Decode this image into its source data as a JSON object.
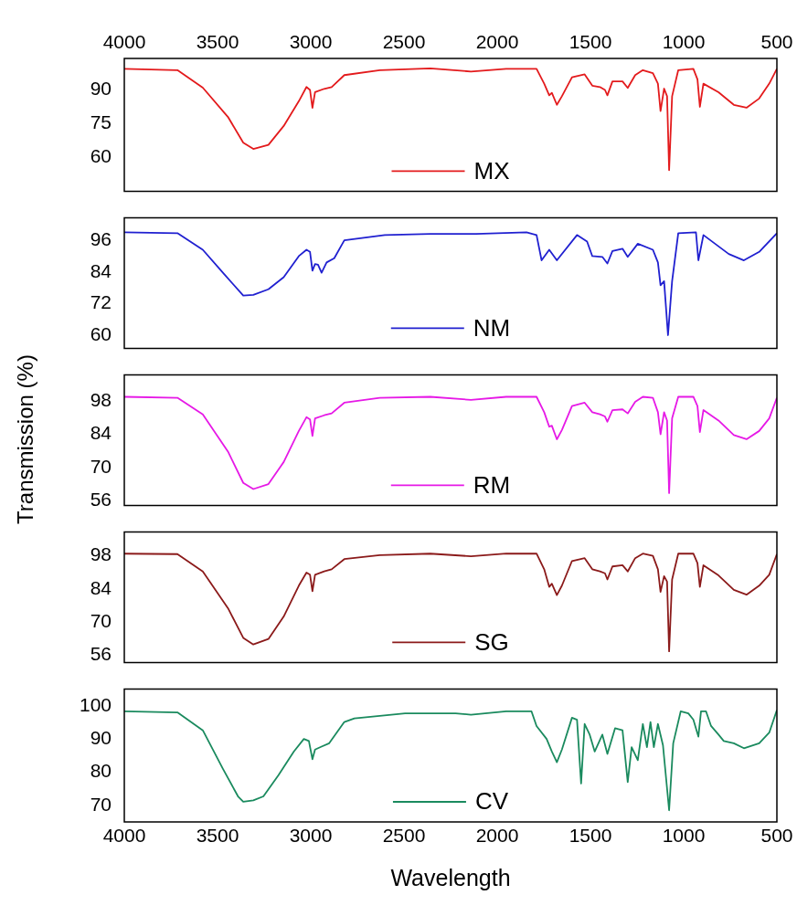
{
  "chart_data": [
    {
      "type": "line",
      "xlim": [
        4000,
        500
      ],
      "xticks": [
        4000,
        3500,
        3000,
        2500,
        2000,
        1500,
        1000,
        500
      ],
      "ylim": [
        45,
        104
      ],
      "yticks": [
        60,
        75,
        90
      ],
      "legend": "bottom",
      "series": [
        {
          "name": "MX",
          "color": "#e31a1c",
          "x": [
            4000,
            3715,
            3579,
            3444,
            3362,
            3308,
            3227,
            3145,
            3064,
            3023,
            3004,
            2991,
            2977,
            2928,
            2888,
            2820,
            2630,
            2359,
            2141,
            1952,
            1789,
            1748,
            1721,
            1707,
            1680,
            1653,
            1599,
            1531,
            1490,
            1449,
            1422,
            1409,
            1382,
            1328,
            1300,
            1260,
            1219,
            1165,
            1138,
            1124,
            1105,
            1089,
            1078,
            1062,
            1029,
            948,
            926,
            913,
            894,
            813,
            731,
            663,
            595,
            541,
            500
          ],
          "values": [
            99.4,
            98.8,
            91,
            78,
            66.6,
            63.8,
            65.6,
            74,
            85,
            91.3,
            90,
            82,
            89,
            90.5,
            91.3,
            96.6,
            98.8,
            99.6,
            98.2,
            99.4,
            99.4,
            92.8,
            87.6,
            88.7,
            83.4,
            87.2,
            95.6,
            96.9,
            91.9,
            91.3,
            90,
            87.6,
            93.8,
            93.8,
            90.9,
            96.6,
            98.8,
            97.5,
            92.8,
            80.6,
            90.6,
            87.2,
            54.4,
            87.2,
            98.8,
            99.4,
            94.7,
            82.5,
            92.8,
            89,
            83.4,
            82.1,
            86.2,
            92.8,
            99.4
          ]
        }
      ]
    },
    {
      "type": "line",
      "xlim": [
        4000,
        500
      ],
      "xticks": [
        4000,
        3500,
        3000,
        2500,
        2000,
        1500,
        1000,
        500
      ],
      "ylim": [
        55,
        104.5
      ],
      "yticks": [
        60,
        72,
        84,
        96
      ],
      "legend": "bottom",
      "tick_labels": "y",
      "series": [
        {
          "name": "NM",
          "color": "#2020d0",
          "x": [
            4000,
            3715,
            3579,
            3471,
            3362,
            3308,
            3227,
            3145,
            3064,
            3023,
            3004,
            2991,
            2977,
            2961,
            2942,
            2915,
            2874,
            2820,
            2603,
            2359,
            2114,
            1843,
            1789,
            1762,
            1721,
            1680,
            1572,
            1518,
            1490,
            1436,
            1409,
            1382,
            1328,
            1300,
            1246,
            1165,
            1138,
            1124,
            1105,
            1084,
            1062,
            1029,
            934,
            921,
            894,
            758,
            677,
            595,
            500
          ],
          "values": [
            99,
            98.7,
            92.4,
            83.7,
            75,
            75.3,
            77.4,
            82,
            90,
            92.4,
            91.6,
            84.5,
            87,
            86.7,
            83.7,
            87.6,
            89.2,
            96,
            98,
            98.4,
            98.4,
            99,
            98,
            88.4,
            92.4,
            88.4,
            98,
            95.5,
            90,
            89.7,
            87.2,
            91.9,
            92.8,
            89.7,
            94.7,
            92.4,
            87.6,
            78.9,
            80.5,
            60,
            80.5,
            98.7,
            99,
            88.4,
            98,
            90.8,
            88.4,
            91.6,
            98.7
          ]
        }
      ]
    },
    {
      "type": "line",
      "xlim": [
        4000,
        500
      ],
      "xticks": [
        4000,
        3500,
        3000,
        2500,
        2000,
        1500,
        1000,
        500
      ],
      "ylim": [
        54,
        109
      ],
      "yticks": [
        56,
        70,
        84,
        98
      ],
      "legend": "bottom",
      "tick_labels": "y",
      "ylabel": "Transmission (%)",
      "series": [
        {
          "name": "RM",
          "color": "#e619e6",
          "x": [
            4000,
            3715,
            3579,
            3444,
            3362,
            3308,
            3227,
            3145,
            3064,
            3023,
            3004,
            2991,
            2977,
            2928,
            2888,
            2820,
            2630,
            2359,
            2141,
            1952,
            1789,
            1748,
            1721,
            1707,
            1680,
            1653,
            1599,
            1531,
            1490,
            1449,
            1422,
            1409,
            1382,
            1328,
            1300,
            1260,
            1219,
            1165,
            1138,
            1124,
            1105,
            1089,
            1078,
            1062,
            1029,
            948,
            926,
            913,
            894,
            813,
            731,
            663,
            595,
            541,
            500
          ],
          "values": [
            99.8,
            99.4,
            92.4,
            76.7,
            63.5,
            60.9,
            63,
            72.3,
            85.4,
            91.2,
            90.3,
            83.3,
            90.7,
            92,
            92.8,
            97.3,
            99.4,
            99.8,
            98.5,
            99.8,
            99.8,
            93.3,
            87.2,
            87.6,
            81.9,
            85.8,
            95.9,
            97.3,
            93.3,
            92.4,
            91.5,
            89.3,
            94.2,
            94.5,
            92.8,
            97.7,
            99.8,
            99.4,
            93.3,
            84,
            93.3,
            89.8,
            59.2,
            90.7,
            99.8,
            99.8,
            95.9,
            84.9,
            94.2,
            89.8,
            83.7,
            81.9,
            85.4,
            90.7,
            99.4
          ]
        }
      ]
    },
    {
      "type": "line",
      "xlim": [
        4000,
        500
      ],
      "xticks": [
        4000,
        3500,
        3000,
        2500,
        2000,
        1500,
        1000,
        500
      ],
      "ylim": [
        53,
        108
      ],
      "yticks": [
        56,
        70,
        84,
        98
      ],
      "legend": "bottom",
      "tick_labels": "y",
      "series": [
        {
          "name": "SG",
          "color": "#8b1a1a",
          "x": [
            4000,
            3715,
            3579,
            3444,
            3362,
            3308,
            3227,
            3145,
            3064,
            3023,
            3004,
            2991,
            2977,
            2928,
            2888,
            2820,
            2630,
            2359,
            2141,
            1952,
            1789,
            1748,
            1721,
            1707,
            1680,
            1653,
            1599,
            1531,
            1490,
            1449,
            1422,
            1409,
            1382,
            1328,
            1300,
            1260,
            1219,
            1165,
            1138,
            1124,
            1105,
            1089,
            1078,
            1062,
            1029,
            948,
            926,
            913,
            894,
            813,
            731,
            663,
            595,
            541,
            500
          ],
          "values": [
            98.9,
            98.7,
            91.4,
            75.9,
            63.4,
            60.6,
            62.9,
            72.4,
            85.4,
            90.9,
            90,
            83.1,
            90,
            91.4,
            92.3,
            96.6,
            98.3,
            98.9,
            97.8,
            98.9,
            98.9,
            92.3,
            84.9,
            86.2,
            81.4,
            85.4,
            95.8,
            97,
            92.3,
            91.4,
            90.6,
            88,
            93.5,
            94,
            91.4,
            97,
            98.9,
            98,
            92.3,
            82.8,
            89.4,
            87.1,
            57.7,
            88,
            98.9,
            98.9,
            94.9,
            84.9,
            94,
            89.7,
            83.6,
            81.6,
            85.4,
            90,
            98.7
          ]
        }
      ]
    },
    {
      "type": "line",
      "xlim": [
        4000,
        500
      ],
      "xticks": [
        4000,
        3500,
        3000,
        2500,
        2000,
        1500,
        1000,
        500
      ],
      "ylim": [
        65,
        105
      ],
      "yticks": [
        70,
        80,
        90,
        100
      ],
      "legend": "bottom",
      "xlabel": "Wavelength",
      "series": [
        {
          "name": "CV",
          "color": "#1a8a5e",
          "x": [
            4000,
            3715,
            3579,
            3471,
            3390,
            3362,
            3308,
            3254,
            3173,
            3091,
            3037,
            3010,
            2991,
            2977,
            2942,
            2901,
            2820,
            2766,
            2494,
            2223,
            2141,
            1952,
            1816,
            1789,
            1735,
            1707,
            1680,
            1653,
            1599,
            1572,
            1550,
            1531,
            1504,
            1477,
            1436,
            1409,
            1368,
            1328,
            1300,
            1279,
            1246,
            1219,
            1197,
            1178,
            1160,
            1138,
            1111,
            1078,
            1056,
            1016,
            975,
            948,
            921,
            907,
            880,
            853,
            813,
            785,
            731,
            677,
            595,
            541,
            500
          ],
          "values": [
            98.3,
            98,
            92.6,
            81,
            72.7,
            71.1,
            71.5,
            72.7,
            79.1,
            86.2,
            90,
            89.4,
            83.9,
            86.8,
            87.7,
            88.7,
            95.1,
            96.2,
            97.7,
            97.7,
            97.3,
            98.3,
            98.3,
            93.9,
            90,
            86.2,
            83,
            86.8,
            96.4,
            95.8,
            76.6,
            94.5,
            91.3,
            86.2,
            91.3,
            85.5,
            93.2,
            92.6,
            77,
            87.5,
            83.6,
            94.5,
            87.5,
            95.1,
            87.5,
            94.5,
            88.1,
            68.5,
            88.7,
            98.3,
            97.7,
            95.8,
            90.7,
            98.3,
            98.3,
            93.9,
            91.3,
            89.4,
            88.7,
            87.2,
            88.7,
            91.9,
            98.7
          ]
        }
      ]
    }
  ]
}
